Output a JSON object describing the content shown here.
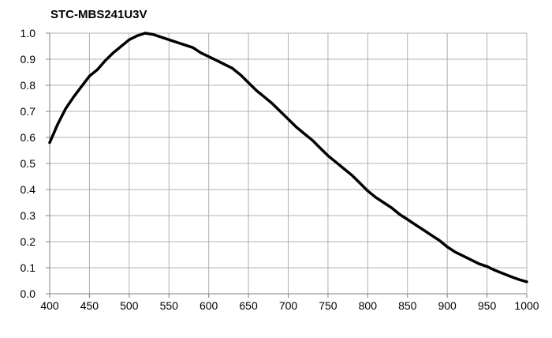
{
  "chart_data": {
    "type": "line",
    "title": "STC-MBS241U3V",
    "xlabel": "",
    "ylabel": "",
    "xlim": [
      400,
      1000
    ],
    "ylim": [
      0.0,
      1.0
    ],
    "x_ticks": [
      "400",
      "450",
      "500",
      "550",
      "600",
      "650",
      "700",
      "750",
      "800",
      "850",
      "900",
      "950",
      "1000"
    ],
    "y_ticks": [
      "0.0",
      "0.1",
      "0.2",
      "0.3",
      "0.4",
      "0.5",
      "0.6",
      "0.7",
      "0.8",
      "0.9",
      "1.0"
    ],
    "grid": true,
    "colors": {
      "line": "#000000",
      "grid": "#b0b0b0",
      "axis": "#808080"
    },
    "series": [
      {
        "x": [
          400,
          410,
          420,
          430,
          440,
          450,
          460,
          470,
          480,
          490,
          500,
          510,
          520,
          530,
          540,
          550,
          560,
          570,
          580,
          590,
          600,
          610,
          620,
          630,
          640,
          650,
          660,
          670,
          680,
          690,
          700,
          710,
          720,
          730,
          740,
          750,
          760,
          770,
          780,
          790,
          800,
          810,
          820,
          830,
          840,
          850,
          860,
          870,
          880,
          890,
          900,
          910,
          920,
          930,
          940,
          950,
          960,
          970,
          980,
          990,
          1000
        ],
        "y": [
          0.58,
          0.65,
          0.71,
          0.755,
          0.795,
          0.835,
          0.86,
          0.895,
          0.925,
          0.95,
          0.975,
          0.99,
          1.0,
          0.995,
          0.985,
          0.975,
          0.965,
          0.955,
          0.945,
          0.925,
          0.91,
          0.895,
          0.88,
          0.865,
          0.84,
          0.81,
          0.78,
          0.755,
          0.73,
          0.7,
          0.67,
          0.64,
          0.615,
          0.59,
          0.56,
          0.53,
          0.505,
          0.48,
          0.455,
          0.425,
          0.395,
          0.37,
          0.35,
          0.33,
          0.305,
          0.285,
          0.265,
          0.245,
          0.225,
          0.205,
          0.18,
          0.16,
          0.145,
          0.13,
          0.115,
          0.105,
          0.09,
          0.078,
          0.066,
          0.055,
          0.046
        ]
      }
    ]
  }
}
